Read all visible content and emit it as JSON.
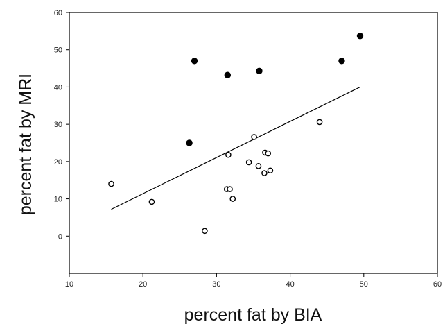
{
  "chart_data": {
    "type": "scatter",
    "title": "",
    "xlabel": "percent fat by BIA",
    "ylabel": "percent fat by MRI",
    "xlim": [
      10,
      60
    ],
    "ylim": [
      -10,
      60
    ],
    "xticks": [
      "10",
      "20",
      "30",
      "40",
      "50",
      "60"
    ],
    "yticks": [
      "0",
      "10",
      "20",
      "30",
      "40",
      "50",
      "60"
    ],
    "grid": false,
    "series": [
      {
        "marker": "filled-circle",
        "color": "#000000",
        "points": [
          {
            "x": 26.3,
            "y": 25.0
          },
          {
            "x": 27.0,
            "y": 47.0
          },
          {
            "x": 31.5,
            "y": 43.2
          },
          {
            "x": 35.8,
            "y": 44.3
          },
          {
            "x": 47.0,
            "y": 47.0
          },
          {
            "x": 49.5,
            "y": 53.7
          }
        ]
      },
      {
        "marker": "open-circle",
        "color": "#000000",
        "points": [
          {
            "x": 15.7,
            "y": 14.0
          },
          {
            "x": 21.2,
            "y": 9.2
          },
          {
            "x": 28.4,
            "y": 1.4
          },
          {
            "x": 31.4,
            "y": 12.6
          },
          {
            "x": 31.8,
            "y": 12.6
          },
          {
            "x": 31.6,
            "y": 21.8
          },
          {
            "x": 32.2,
            "y": 10.0
          },
          {
            "x": 34.4,
            "y": 19.8
          },
          {
            "x": 35.1,
            "y": 26.6
          },
          {
            "x": 35.7,
            "y": 18.8
          },
          {
            "x": 36.5,
            "y": 16.9
          },
          {
            "x": 36.6,
            "y": 22.4
          },
          {
            "x": 37.0,
            "y": 22.2
          },
          {
            "x": 37.3,
            "y": 17.6
          },
          {
            "x": 44.0,
            "y": 30.6
          }
        ]
      }
    ],
    "regression_line": {
      "x": [
        15.7,
        49.5
      ],
      "y": [
        7.2,
        40.0
      ]
    }
  }
}
